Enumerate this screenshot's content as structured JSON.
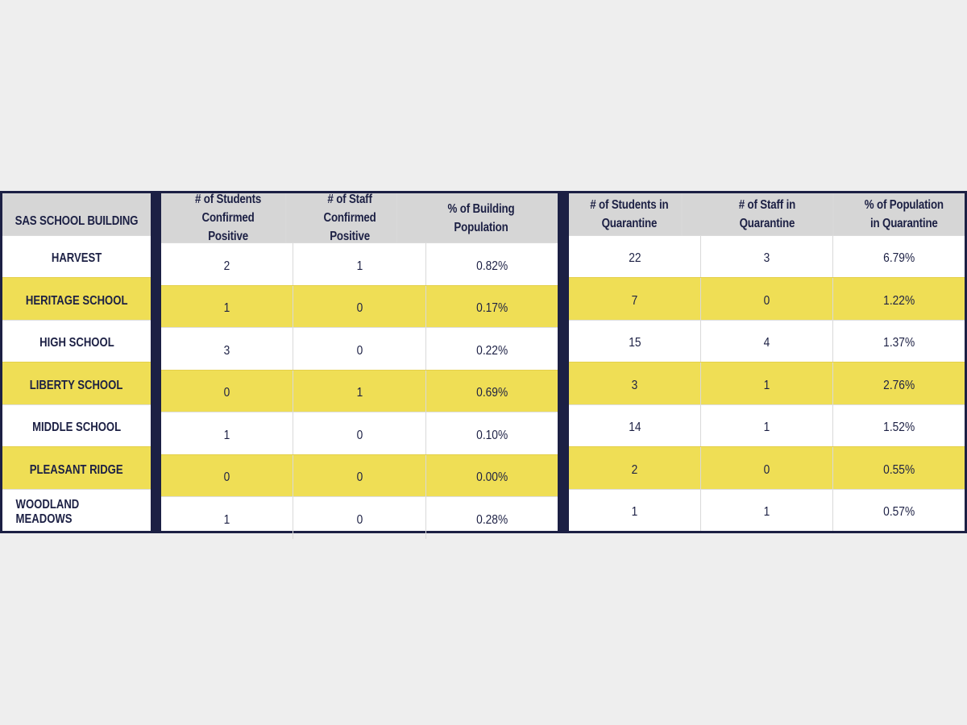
{
  "headers": {
    "building": "SAS SCHOOL BUILDING",
    "confirmed": [
      "# of Students Confirmed Positive",
      "# of Staff Confirmed Positive",
      "% of Building Population"
    ],
    "quarantine": [
      "# of Students in Quarantine",
      "# of Staff in Quarantine",
      "% of Population in Quarantine"
    ]
  },
  "colors": {
    "highlight": "#efde55",
    "navy": "#1c2044",
    "header_bg": "#d6d6d6"
  },
  "rows": [
    {
      "building": "HARVEST",
      "students_pos": "2",
      "staff_pos": "1",
      "pct_building": "0.82%",
      "students_q": "22",
      "staff_q": "3",
      "pct_q": "6.79%",
      "highlighted": false
    },
    {
      "building": "HERITAGE SCHOOL",
      "students_pos": "1",
      "staff_pos": "0",
      "pct_building": "0.17%",
      "students_q": "7",
      "staff_q": "0",
      "pct_q": "1.22%",
      "highlighted": true
    },
    {
      "building": "HIGH SCHOOL",
      "students_pos": "3",
      "staff_pos": "0",
      "pct_building": "0.22%",
      "students_q": "15",
      "staff_q": "4",
      "pct_q": "1.37%",
      "highlighted": false
    },
    {
      "building": "LIBERTY SCHOOL",
      "students_pos": "0",
      "staff_pos": "1",
      "pct_building": "0.69%",
      "students_q": "3",
      "staff_q": "1",
      "pct_q": "2.76%",
      "highlighted": true
    },
    {
      "building": "MIDDLE SCHOOL",
      "students_pos": "1",
      "staff_pos": "0",
      "pct_building": "0.10%",
      "students_q": "14",
      "staff_q": "1",
      "pct_q": "1.52%",
      "highlighted": false
    },
    {
      "building": "PLEASANT RIDGE",
      "students_pos": "0",
      "staff_pos": "0",
      "pct_building": "0.00%",
      "students_q": "2",
      "staff_q": "0",
      "pct_q": "0.55%",
      "highlighted": true
    },
    {
      "building": "WOODLAND MEADOWS",
      "students_pos": "1",
      "staff_pos": "0",
      "pct_building": "0.28%",
      "students_q": "1",
      "staff_q": "1",
      "pct_q": "0.57%",
      "highlighted": false
    }
  ]
}
